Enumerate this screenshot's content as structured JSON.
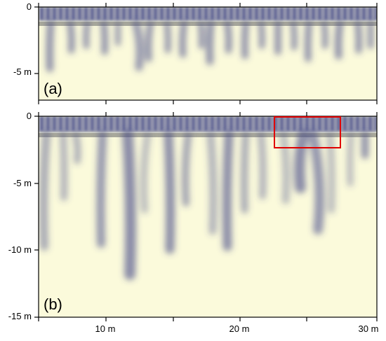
{
  "panels": {
    "a": {
      "label": "(a)",
      "y_ticks": [
        "0",
        "-5 m"
      ]
    },
    "b": {
      "label": "(b)",
      "y_ticks": [
        "0",
        "-5 m",
        "-10 m",
        "-15 m"
      ]
    }
  },
  "x_ticks": [
    "10 m",
    "20 m",
    "30 m"
  ],
  "colors": {
    "background": "#fbfadb",
    "plume": "#3f4686",
    "layer": "#9a9a8f",
    "highlight_box": "#e00000",
    "axes": "#000000"
  }
}
